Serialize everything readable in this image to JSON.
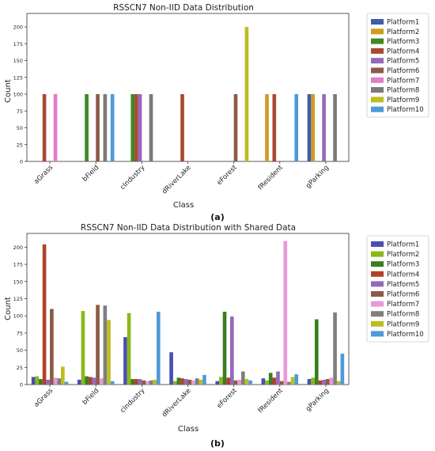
{
  "chart_data": [
    {
      "type": "bar",
      "title": "RSSCN7 Non-IID Data Distribution",
      "xlabel": "Class",
      "ylabel": "Count",
      "ylim": [
        0,
        220
      ],
      "yticks": [
        0,
        25,
        50,
        75,
        100,
        125,
        150,
        175,
        200
      ],
      "categories": [
        "aGrass",
        "bField",
        "cIndustry",
        "dRiverLake",
        "eForest",
        "fResident",
        "gParking"
      ],
      "legend_position": "right",
      "series": [
        {
          "name": "Platform1",
          "color": "#3b5fa8",
          "values": [
            0,
            0,
            0,
            0,
            0,
            0,
            100
          ]
        },
        {
          "name": "Platform2",
          "color": "#d29a22",
          "values": [
            0,
            0,
            0,
            0,
            0,
            100,
            100
          ]
        },
        {
          "name": "Platform3",
          "color": "#3d8a22",
          "values": [
            0,
            100,
            100,
            0,
            0,
            0,
            0
          ]
        },
        {
          "name": "Platform4",
          "color": "#a84a33",
          "values": [
            100,
            0,
            100,
            100,
            0,
            100,
            0
          ]
        },
        {
          "name": "Platform5",
          "color": "#9569b8",
          "values": [
            0,
            0,
            100,
            0,
            0,
            0,
            100
          ]
        },
        {
          "name": "Platform6",
          "color": "#8c5a46",
          "values": [
            0,
            100,
            0,
            0,
            100,
            0,
            0
          ]
        },
        {
          "name": "Platform7",
          "color": "#e07ccc",
          "values": [
            100,
            0,
            0,
            0,
            0,
            0,
            0
          ]
        },
        {
          "name": "Platform8",
          "color": "#7a7a7a",
          "values": [
            0,
            100,
            100,
            0,
            0,
            0,
            100
          ]
        },
        {
          "name": "Platform9",
          "color": "#bcbd22",
          "values": [
            0,
            0,
            0,
            0,
            200,
            0,
            0
          ]
        },
        {
          "name": "Platform10",
          "color": "#4f9ad8",
          "values": [
            0,
            100,
            0,
            0,
            0,
            100,
            0
          ]
        }
      ]
    },
    {
      "type": "bar",
      "title": "RSSCN7 Non-IID Data Distribution with Shared Data",
      "xlabel": "Class",
      "ylabel": "Count",
      "ylim": [
        0,
        220
      ],
      "yticks": [
        0,
        25,
        50,
        75,
        100,
        125,
        150,
        175,
        200
      ],
      "categories": [
        "aGrass",
        "bField",
        "cIndustry",
        "dRiverLake",
        "eForest",
        "fResident",
        "gParking"
      ],
      "legend_position": "right",
      "series": [
        {
          "name": "Platform1",
          "color": "#4a4fb0",
          "values": [
            11,
            7,
            69,
            47,
            5,
            9,
            8
          ]
        },
        {
          "name": "Platform2",
          "color": "#8ab818",
          "values": [
            12,
            107,
            104,
            5,
            11,
            6,
            10
          ]
        },
        {
          "name": "Platform3",
          "color": "#3a7d22",
          "values": [
            8,
            12,
            8,
            10,
            106,
            17,
            95
          ]
        },
        {
          "name": "Platform4",
          "color": "#b0412e",
          "values": [
            204,
            11,
            8,
            9,
            10,
            10,
            6
          ]
        },
        {
          "name": "Platform5",
          "color": "#9569b8",
          "values": [
            7,
            10,
            8,
            8,
            99,
            19,
            7
          ]
        },
        {
          "name": "Platform6",
          "color": "#8c5a46",
          "values": [
            110,
            116,
            6,
            7,
            6,
            5,
            8
          ]
        },
        {
          "name": "Platform7",
          "color": "#e898d8",
          "values": [
            10,
            9,
            5,
            6,
            7,
            209,
            10
          ]
        },
        {
          "name": "Platform8",
          "color": "#7f7f7f",
          "values": [
            9,
            115,
            6,
            9,
            19,
            4,
            105
          ]
        },
        {
          "name": "Platform9",
          "color": "#bcbd22",
          "values": [
            26,
            94,
            7,
            7,
            8,
            11,
            5
          ]
        },
        {
          "name": "Platform10",
          "color": "#4f9ad8",
          "values": [
            4,
            5,
            106,
            14,
            6,
            15,
            45
          ]
        }
      ]
    }
  ],
  "captions": [
    "(a)",
    "(b)"
  ]
}
